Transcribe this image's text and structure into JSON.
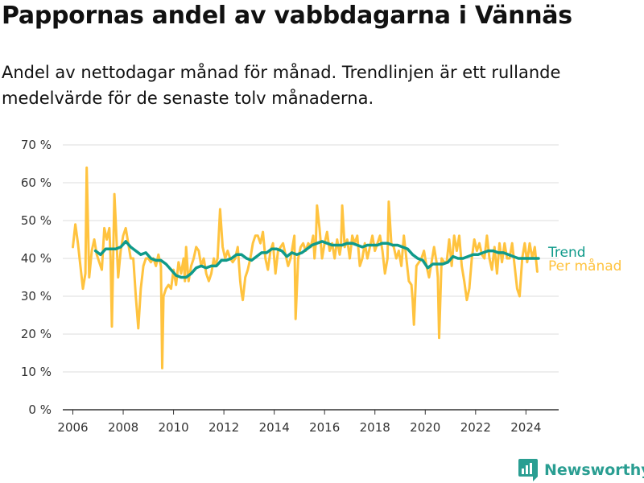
{
  "header": {
    "title": "Pappornas andel av vabbdagarna i Vännäs",
    "subtitle": "Andel av nettodagar månad för månad. Trendlinjen är ett rullande medelvärde för de senaste tolv månaderna."
  },
  "brand": {
    "name": "Newsworthy",
    "icon": "newsworthy-logo-icon",
    "color": "#2a9e92"
  },
  "colors": {
    "monthly": "#ffc33f",
    "trend": "#0f9a8a",
    "grid": "#dddddd",
    "axis": "#333333"
  },
  "chart_data": {
    "type": "line",
    "title": "Pappornas andel av vabbdagarna i Vännäs",
    "xlabel": "",
    "ylabel": "",
    "ylim": [
      0,
      70
    ],
    "xlim": [
      2005.6,
      2025.3
    ],
    "grid": true,
    "x_ticks": [
      2006,
      2008,
      2010,
      2012,
      2014,
      2016,
      2018,
      2020,
      2022,
      2024
    ],
    "y_ticks": [
      {
        "value": 0,
        "label": "0 %"
      },
      {
        "value": 10,
        "label": "10 %"
      },
      {
        "value": 20,
        "label": "20 %"
      },
      {
        "value": 30,
        "label": "30 %"
      },
      {
        "value": 40,
        "label": "40 %"
      },
      {
        "value": 50,
        "label": "50 %"
      },
      {
        "value": 60,
        "label": "60 %"
      },
      {
        "value": 70,
        "label": "70 %"
      }
    ],
    "series": [
      {
        "name": "Per månad",
        "color": "#ffc33f",
        "points": [
          [
            2006.0,
            43
          ],
          [
            2006.1,
            49
          ],
          [
            2006.2,
            44
          ],
          [
            2006.3,
            38
          ],
          [
            2006.4,
            32
          ],
          [
            2006.5,
            36
          ],
          [
            2006.55,
            64
          ],
          [
            2006.65,
            35
          ],
          [
            2006.75,
            42
          ],
          [
            2006.85,
            45
          ],
          [
            2006.95,
            41
          ],
          [
            2007.05,
            39
          ],
          [
            2007.15,
            37
          ],
          [
            2007.25,
            48
          ],
          [
            2007.35,
            45
          ],
          [
            2007.45,
            48
          ],
          [
            2007.5,
            40
          ],
          [
            2007.55,
            22
          ],
          [
            2007.65,
            57
          ],
          [
            2007.7,
            50
          ],
          [
            2007.8,
            35
          ],
          [
            2007.9,
            42
          ],
          [
            2008.0,
            46
          ],
          [
            2008.1,
            48
          ],
          [
            2008.2,
            44
          ],
          [
            2008.3,
            40
          ],
          [
            2008.4,
            40
          ],
          [
            2008.5,
            30
          ],
          [
            2008.6,
            21.5
          ],
          [
            2008.7,
            32
          ],
          [
            2008.8,
            38
          ],
          [
            2008.9,
            40
          ],
          [
            2009.0,
            40
          ],
          [
            2009.1,
            39
          ],
          [
            2009.2,
            40
          ],
          [
            2009.3,
            38
          ],
          [
            2009.4,
            41
          ],
          [
            2009.5,
            38
          ],
          [
            2009.55,
            11
          ],
          [
            2009.6,
            30
          ],
          [
            2009.7,
            32
          ],
          [
            2009.8,
            33
          ],
          [
            2009.9,
            32
          ],
          [
            2010.0,
            37
          ],
          [
            2010.1,
            33
          ],
          [
            2010.2,
            39
          ],
          [
            2010.3,
            36
          ],
          [
            2010.4,
            40
          ],
          [
            2010.45,
            34
          ],
          [
            2010.5,
            43
          ],
          [
            2010.55,
            38
          ],
          [
            2010.6,
            34
          ],
          [
            2010.7,
            38
          ],
          [
            2010.8,
            40
          ],
          [
            2010.9,
            43
          ],
          [
            2011.0,
            42
          ],
          [
            2011.1,
            38
          ],
          [
            2011.2,
            40
          ],
          [
            2011.3,
            36
          ],
          [
            2011.4,
            34
          ],
          [
            2011.5,
            36
          ],
          [
            2011.6,
            40
          ],
          [
            2011.65,
            38
          ],
          [
            2011.75,
            40
          ],
          [
            2011.85,
            53
          ],
          [
            2011.95,
            43
          ],
          [
            2012.05,
            40
          ],
          [
            2012.15,
            42
          ],
          [
            2012.25,
            40
          ],
          [
            2012.35,
            39
          ],
          [
            2012.45,
            40
          ],
          [
            2012.55,
            43
          ],
          [
            2012.65,
            34
          ],
          [
            2012.7,
            31
          ],
          [
            2012.75,
            29
          ],
          [
            2012.85,
            35
          ],
          [
            2012.95,
            37
          ],
          [
            2013.05,
            40
          ],
          [
            2013.15,
            44
          ],
          [
            2013.25,
            46
          ],
          [
            2013.35,
            46
          ],
          [
            2013.45,
            44
          ],
          [
            2013.55,
            47
          ],
          [
            2013.65,
            40
          ],
          [
            2013.75,
            37
          ],
          [
            2013.85,
            42
          ],
          [
            2013.95,
            44
          ],
          [
            2014.05,
            36
          ],
          [
            2014.15,
            42
          ],
          [
            2014.25,
            43
          ],
          [
            2014.35,
            44
          ],
          [
            2014.45,
            41
          ],
          [
            2014.55,
            38
          ],
          [
            2014.65,
            40
          ],
          [
            2014.75,
            44
          ],
          [
            2014.8,
            46
          ],
          [
            2014.85,
            24
          ],
          [
            2014.95,
            40
          ],
          [
            2015.05,
            43
          ],
          [
            2015.15,
            44
          ],
          [
            2015.25,
            42
          ],
          [
            2015.35,
            44
          ],
          [
            2015.45,
            43
          ],
          [
            2015.55,
            46
          ],
          [
            2015.6,
            40
          ],
          [
            2015.65,
            44
          ],
          [
            2015.7,
            54
          ],
          [
            2015.8,
            48
          ],
          [
            2015.9,
            40
          ],
          [
            2016.0,
            44
          ],
          [
            2016.1,
            47
          ],
          [
            2016.2,
            42
          ],
          [
            2016.3,
            44
          ],
          [
            2016.4,
            40
          ],
          [
            2016.5,
            45
          ],
          [
            2016.6,
            41
          ],
          [
            2016.65,
            43
          ],
          [
            2016.7,
            54
          ],
          [
            2016.8,
            43
          ],
          [
            2016.9,
            45
          ],
          [
            2017.0,
            40
          ],
          [
            2017.1,
            46
          ],
          [
            2017.2,
            44
          ],
          [
            2017.3,
            46
          ],
          [
            2017.4,
            38
          ],
          [
            2017.5,
            40
          ],
          [
            2017.6,
            44
          ],
          [
            2017.7,
            40
          ],
          [
            2017.8,
            43
          ],
          [
            2017.9,
            46
          ],
          [
            2018.0,
            42
          ],
          [
            2018.1,
            44
          ],
          [
            2018.2,
            46
          ],
          [
            2018.3,
            42
          ],
          [
            2018.4,
            36
          ],
          [
            2018.5,
            40
          ],
          [
            2018.55,
            55
          ],
          [
            2018.65,
            44
          ],
          [
            2018.75,
            43
          ],
          [
            2018.85,
            40
          ],
          [
            2018.95,
            42
          ],
          [
            2019.05,
            38
          ],
          [
            2019.15,
            46
          ],
          [
            2019.25,
            40
          ],
          [
            2019.35,
            34
          ],
          [
            2019.45,
            33
          ],
          [
            2019.5,
            29
          ],
          [
            2019.55,
            22.5
          ],
          [
            2019.65,
            38
          ],
          [
            2019.75,
            39
          ],
          [
            2019.85,
            40
          ],
          [
            2019.95,
            42
          ],
          [
            2020.05,
            38
          ],
          [
            2020.15,
            35
          ],
          [
            2020.25,
            39
          ],
          [
            2020.35,
            43
          ],
          [
            2020.45,
            39
          ],
          [
            2020.5,
            35
          ],
          [
            2020.55,
            19
          ],
          [
            2020.65,
            40
          ],
          [
            2020.75,
            39
          ],
          [
            2020.85,
            39
          ],
          [
            2020.95,
            45
          ],
          [
            2021.05,
            38
          ],
          [
            2021.15,
            46
          ],
          [
            2021.25,
            42
          ],
          [
            2021.35,
            46
          ],
          [
            2021.45,
            38
          ],
          [
            2021.55,
            34
          ],
          [
            2021.65,
            29
          ],
          [
            2021.75,
            32
          ],
          [
            2021.85,
            40
          ],
          [
            2021.95,
            45
          ],
          [
            2022.05,
            42
          ],
          [
            2022.15,
            44
          ],
          [
            2022.25,
            41
          ],
          [
            2022.35,
            40
          ],
          [
            2022.45,
            46
          ],
          [
            2022.55,
            40
          ],
          [
            2022.65,
            37
          ],
          [
            2022.75,
            43
          ],
          [
            2022.85,
            36
          ],
          [
            2022.95,
            44
          ],
          [
            2023.05,
            39
          ],
          [
            2023.15,
            44
          ],
          [
            2023.25,
            40
          ],
          [
            2023.35,
            40
          ],
          [
            2023.45,
            44
          ],
          [
            2023.55,
            38
          ],
          [
            2023.65,
            32
          ],
          [
            2023.75,
            30
          ],
          [
            2023.85,
            40
          ],
          [
            2023.95,
            44
          ],
          [
            2024.05,
            39
          ],
          [
            2024.15,
            44
          ],
          [
            2024.25,
            40
          ],
          [
            2024.35,
            43
          ],
          [
            2024.45,
            36.5
          ]
        ]
      },
      {
        "name": "Trend",
        "color": "#0f9a8a",
        "points": [
          [
            2006.9,
            42
          ],
          [
            2007.1,
            41
          ],
          [
            2007.3,
            42.5
          ],
          [
            2007.5,
            42.5
          ],
          [
            2007.7,
            42.5
          ],
          [
            2007.9,
            43
          ],
          [
            2008.1,
            44.5
          ],
          [
            2008.3,
            43
          ],
          [
            2008.5,
            42
          ],
          [
            2008.7,
            41
          ],
          [
            2008.9,
            41.5
          ],
          [
            2009.1,
            40
          ],
          [
            2009.3,
            39.5
          ],
          [
            2009.5,
            39.5
          ],
          [
            2009.7,
            38.5
          ],
          [
            2009.9,
            37
          ],
          [
            2010.1,
            35.5
          ],
          [
            2010.3,
            35
          ],
          [
            2010.5,
            35
          ],
          [
            2010.7,
            36
          ],
          [
            2010.9,
            37.5
          ],
          [
            2011.1,
            38
          ],
          [
            2011.3,
            37.5
          ],
          [
            2011.5,
            38
          ],
          [
            2011.7,
            38
          ],
          [
            2011.9,
            39.5
          ],
          [
            2012.1,
            39.5
          ],
          [
            2012.3,
            40
          ],
          [
            2012.5,
            41
          ],
          [
            2012.7,
            41
          ],
          [
            2012.9,
            40
          ],
          [
            2013.1,
            39.5
          ],
          [
            2013.3,
            40.5
          ],
          [
            2013.5,
            41.5
          ],
          [
            2013.7,
            41.5
          ],
          [
            2013.9,
            42.5
          ],
          [
            2014.1,
            42.5
          ],
          [
            2014.3,
            42
          ],
          [
            2014.5,
            40.5
          ],
          [
            2014.7,
            41.5
          ],
          [
            2014.9,
            41
          ],
          [
            2015.1,
            41.5
          ],
          [
            2015.3,
            42.5
          ],
          [
            2015.5,
            43.5
          ],
          [
            2015.7,
            44
          ],
          [
            2015.9,
            44.5
          ],
          [
            2016.1,
            44
          ],
          [
            2016.3,
            43.5
          ],
          [
            2016.5,
            43.5
          ],
          [
            2016.7,
            43.5
          ],
          [
            2016.9,
            44
          ],
          [
            2017.1,
            44
          ],
          [
            2017.3,
            43.5
          ],
          [
            2017.5,
            43
          ],
          [
            2017.7,
            43.5
          ],
          [
            2017.9,
            43.5
          ],
          [
            2018.1,
            43.5
          ],
          [
            2018.3,
            44
          ],
          [
            2018.5,
            44
          ],
          [
            2018.7,
            43.5
          ],
          [
            2018.9,
            43.5
          ],
          [
            2019.1,
            43
          ],
          [
            2019.3,
            42.5
          ],
          [
            2019.5,
            41
          ],
          [
            2019.7,
            40
          ],
          [
            2019.9,
            39.5
          ],
          [
            2020.1,
            37.5
          ],
          [
            2020.3,
            38.5
          ],
          [
            2020.5,
            38.5
          ],
          [
            2020.7,
            38.5
          ],
          [
            2020.9,
            39
          ],
          [
            2021.1,
            40.5
          ],
          [
            2021.3,
            40
          ],
          [
            2021.5,
            40
          ],
          [
            2021.7,
            40.5
          ],
          [
            2021.9,
            41
          ],
          [
            2022.1,
            41
          ],
          [
            2022.3,
            41.5
          ],
          [
            2022.5,
            42
          ],
          [
            2022.7,
            42
          ],
          [
            2022.9,
            41.5
          ],
          [
            2023.1,
            41.5
          ],
          [
            2023.3,
            41
          ],
          [
            2023.5,
            40.5
          ],
          [
            2023.7,
            40
          ],
          [
            2023.9,
            40
          ],
          [
            2024.1,
            40
          ],
          [
            2024.3,
            40
          ],
          [
            2024.5,
            40
          ]
        ]
      }
    ]
  }
}
